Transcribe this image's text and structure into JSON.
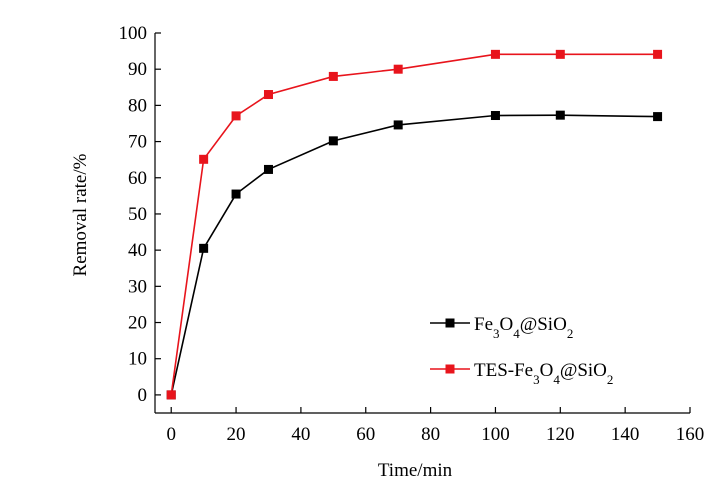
{
  "chart_data": {
    "type": "line",
    "xlabel": "Time/min",
    "ylabel": "Removal rate/%",
    "xlim": [
      -5,
      160
    ],
    "ylim": [
      -5,
      100
    ],
    "xticks": [
      0,
      20,
      40,
      60,
      80,
      100,
      120,
      140,
      160
    ],
    "yticks": [
      0,
      10,
      20,
      30,
      40,
      50,
      60,
      70,
      80,
      90,
      100
    ],
    "legend_position": "bottom-right",
    "grid": false,
    "series": [
      {
        "name": "Fe3O4@SiO2",
        "color": "#000000",
        "marker": "square",
        "x": [
          0,
          10,
          20,
          30,
          50,
          70,
          100,
          120,
          150
        ],
        "y": [
          0,
          40.5,
          55.5,
          62.3,
          70.2,
          74.6,
          77.2,
          77.3,
          76.9
        ]
      },
      {
        "name": "TES-Fe3O4@SiO2",
        "color": "#e8141c",
        "marker": "square",
        "x": [
          0,
          10,
          20,
          30,
          50,
          70,
          100,
          120,
          150
        ],
        "y": [
          0,
          65.1,
          77.1,
          83.0,
          88.0,
          90.0,
          94.1,
          94.1,
          94.1
        ]
      }
    ]
  }
}
